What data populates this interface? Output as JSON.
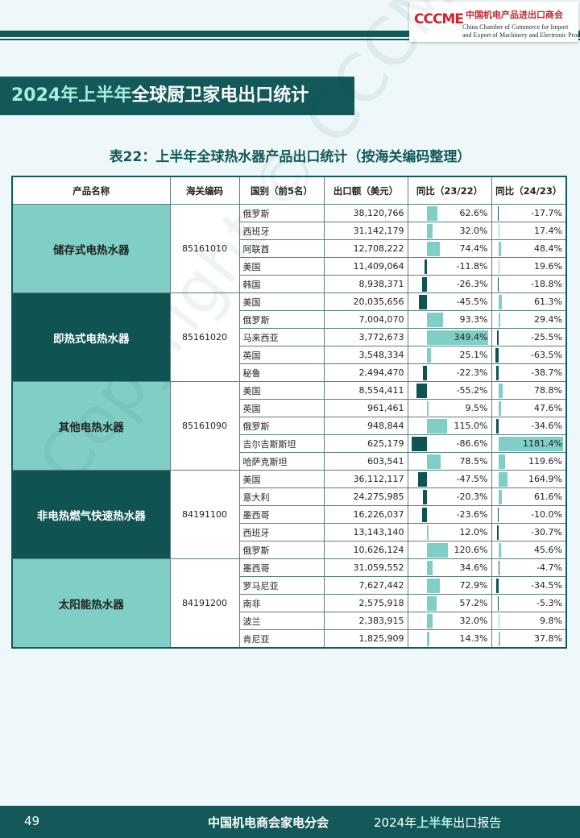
{
  "logo": {
    "mark": "CCCME",
    "name_cn": "中国机电产品进出口商会",
    "name_en_1": "China Chamber of Commerce for Import",
    "name_en_2": "and Export of Machinery and Electronic Products"
  },
  "section_title": {
    "highlight": "2024年上半年",
    "rest": "全球厨卫家电出口统计"
  },
  "table_title": "表22：上半年全球热水器产品出口统计（按海关编码整理）",
  "table": {
    "headers": [
      "产品名称",
      "海关编码",
      "国别（前5名）",
      "出口额（美元）",
      "同比（23/22）",
      "同比（24/23）"
    ],
    "groups": [
      {
        "name": "储存式电热水器",
        "code": "85161010",
        "rows": [
          {
            "country": "俄罗斯",
            "export": "38,120,766",
            "yoy": [
              62.6,
              -17.7
            ],
            "yoy_labels": [
              "62.6%",
              "-17.7%"
            ]
          },
          {
            "country": "西班牙",
            "export": "31,142,179",
            "yoy": [
              32.0,
              17.4
            ],
            "yoy_labels": [
              "32.0%",
              "17.4%"
            ]
          },
          {
            "country": "阿联酋",
            "export": "12,708,222",
            "yoy": [
              74.4,
              48.4
            ],
            "yoy_labels": [
              "74.4%",
              "48.4%"
            ]
          },
          {
            "country": "美国",
            "export": "11,409,064",
            "yoy": [
              -11.8,
              19.6
            ],
            "yoy_labels": [
              "-11.8%",
              "19.6%"
            ]
          },
          {
            "country": "韩国",
            "export": "8,938,371",
            "yoy": [
              -26.3,
              -18.8
            ],
            "yoy_labels": [
              "-26.3%",
              "-18.8%"
            ]
          }
        ]
      },
      {
        "name": "即热式电热水器",
        "code": "85161020",
        "rows": [
          {
            "country": "美国",
            "export": "20,035,656",
            "yoy": [
              -45.5,
              61.3
            ],
            "yoy_labels": [
              "-45.5%",
              "61.3%"
            ]
          },
          {
            "country": "俄罗斯",
            "export": "7,004,070",
            "yoy": [
              93.3,
              29.4
            ],
            "yoy_labels": [
              "93.3%",
              "29.4%"
            ]
          },
          {
            "country": "马来西亚",
            "export": "3,772,673",
            "yoy": [
              349.4,
              -25.5
            ],
            "yoy_labels": [
              "349.4%",
              "-25.5%"
            ]
          },
          {
            "country": "英国",
            "export": "3,548,334",
            "yoy": [
              25.1,
              -63.5
            ],
            "yoy_labels": [
              "25.1%",
              "-63.5%"
            ]
          },
          {
            "country": "秘鲁",
            "export": "2,494,470",
            "yoy": [
              -22.3,
              -38.7
            ],
            "yoy_labels": [
              "-22.3%",
              "-38.7%"
            ]
          }
        ]
      },
      {
        "name": "其他电热水器",
        "code": "85161090",
        "rows": [
          {
            "country": "美国",
            "export": "8,554,411",
            "yoy": [
              -55.2,
              78.8
            ],
            "yoy_labels": [
              "-55.2%",
              "78.8%"
            ]
          },
          {
            "country": "英国",
            "export": "961,461",
            "yoy": [
              9.5,
              47.6
            ],
            "yoy_labels": [
              "9.5%",
              "47.6%"
            ]
          },
          {
            "country": "俄罗斯",
            "export": "948,844",
            "yoy": [
              115.0,
              -34.6
            ],
            "yoy_labels": [
              "115.0%",
              "-34.6%"
            ]
          },
          {
            "country": "吉尔吉斯斯坦",
            "export": "625,179",
            "yoy": [
              -86.6,
              1181.4
            ],
            "yoy_labels": [
              "-86.6%",
              "1181.4%"
            ]
          },
          {
            "country": "哈萨克斯坦",
            "export": "603,541",
            "yoy": [
              78.5,
              119.6
            ],
            "yoy_labels": [
              "78.5%",
              "119.6%"
            ]
          }
        ]
      },
      {
        "name": "非电热燃气快速热水器",
        "code": "84191100",
        "rows": [
          {
            "country": "美国",
            "export": "36,112,117",
            "yoy": [
              -47.5,
              164.9
            ],
            "yoy_labels": [
              "-47.5%",
              "164.9%"
            ]
          },
          {
            "country": "意大利",
            "export": "24,275,985",
            "yoy": [
              -20.3,
              61.6
            ],
            "yoy_labels": [
              "-20.3%",
              "61.6%"
            ]
          },
          {
            "country": "墨西哥",
            "export": "16,226,037",
            "yoy": [
              -23.6,
              -10.0
            ],
            "yoy_labels": [
              "-23.6%",
              "-10.0%"
            ]
          },
          {
            "country": "西班牙",
            "export": "13,143,140",
            "yoy": [
              12.0,
              -30.7
            ],
            "yoy_labels": [
              "12.0%",
              "-30.7%"
            ]
          },
          {
            "country": "俄罗斯",
            "export": "10,626,124",
            "yoy": [
              120.6,
              45.6
            ],
            "yoy_labels": [
              "120.6%",
              "45.6%"
            ]
          }
        ]
      },
      {
        "name": "太阳能热水器",
        "code": "84191200",
        "rows": [
          {
            "country": "墨西哥",
            "export": "31,059,552",
            "yoy": [
              34.6,
              -4.7
            ],
            "yoy_labels": [
              "34.6%",
              "-4.7%"
            ]
          },
          {
            "country": "罗马尼亚",
            "export": "7,627,442",
            "yoy": [
              72.9,
              -34.5
            ],
            "yoy_labels": [
              "72.9%",
              "-34.5%"
            ]
          },
          {
            "country": "南非",
            "export": "2,575,918",
            "yoy": [
              57.2,
              -5.3
            ],
            "yoy_labels": [
              "57.2%",
              "-5.3%"
            ]
          },
          {
            "country": "波兰",
            "export": "2,383,915",
            "yoy": [
              32.0,
              9.8
            ],
            "yoy_labels": [
              "32.0%",
              "9.8%"
            ]
          },
          {
            "country": "肯尼亚",
            "export": "1,825,909",
            "yoy": [
              14.3,
              37.8
            ],
            "yoy_labels": [
              "14.3%",
              "37.8%"
            ]
          }
        ]
      }
    ]
  },
  "watermark": "Copyright © CCCME",
  "footer": {
    "page": "49",
    "org": "中国机电商会家电分会",
    "report_pre": "2024年",
    "report_highlight": "上半年",
    "report_post": "出口报告"
  }
}
